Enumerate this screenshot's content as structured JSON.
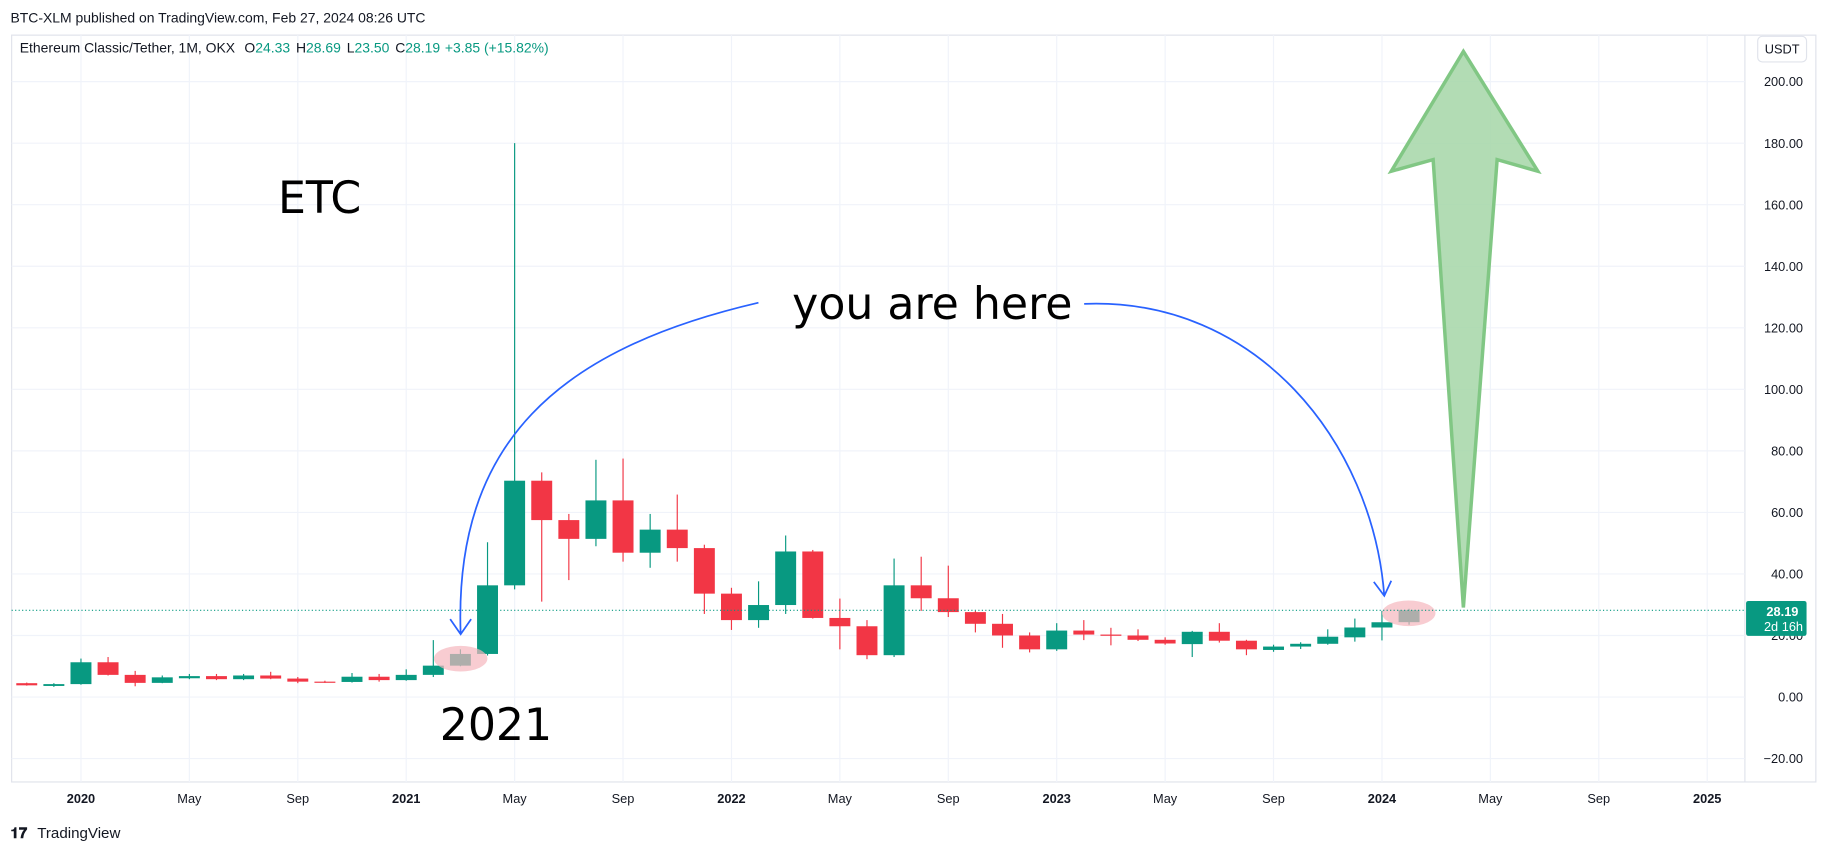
{
  "header": {
    "published": "BTC-XLM published on TradingView.com, Feb 27, 2024 08:26 UTC",
    "currency_button": "USDT",
    "footer_brand": "TradingView"
  },
  "chart_data": {
    "type": "candlestick",
    "symbol": "Ethereum Classic/Tether, 1M, OKX",
    "ohlc_legend": [
      {
        "label": "O",
        "value": "24.33"
      },
      {
        "label": "H",
        "value": "28.69"
      },
      {
        "label": "L",
        "value": "23.50"
      },
      {
        "label": "C",
        "value": "28.19"
      }
    ],
    "change": "+3.85 (+15.82%)",
    "categories": [
      null,
      null,
      "2020",
      null,
      null,
      null,
      "May",
      null,
      null,
      null,
      "Sep",
      null,
      null,
      null,
      "2021",
      null,
      null,
      null,
      "May",
      null,
      null,
      null,
      "Sep",
      null,
      null,
      null,
      "2022",
      null,
      null,
      null,
      "May",
      null,
      null,
      null,
      "Sep",
      null,
      null,
      null,
      "2023",
      null,
      null,
      null,
      "May",
      null,
      null,
      null,
      "Sep",
      null,
      null,
      null,
      "2024",
      null,
      null,
      null,
      "May",
      null,
      null,
      null,
      "Sep",
      null,
      null,
      null,
      "2025"
    ],
    "open": [
      4.5,
      3.6,
      4.2,
      11.3,
      7.2,
      4.6,
      6.1,
      6.8,
      5.8,
      7.0,
      6.0,
      5.0,
      4.9,
      6.6,
      5.5,
      7.2,
      10.2,
      14.0,
      36.3,
      70.3,
      57.5,
      51.4,
      63.9,
      46.9,
      54.4,
      48.4,
      33.6,
      25.0,
      29.9,
      47.3,
      25.7,
      23.0,
      13.6,
      36.3,
      32.1,
      27.6,
      23.8,
      20.0,
      15.5,
      21.6,
      20.3,
      20.0,
      18.6,
      17.2,
      21.2,
      18.3,
      15.3,
      16.4,
      17.3,
      19.4,
      22.6,
      24.33,
      null,
      null,
      null,
      null,
      null,
      null,
      null,
      null,
      null,
      null,
      null
    ],
    "high": [
      4.7,
      4.5,
      12.5,
      13.0,
      8.5,
      7.0,
      7.5,
      7.5,
      7.5,
      8.2,
      6.5,
      5.3,
      7.8,
      7.5,
      9.0,
      18.5,
      15.5,
      50.3,
      180.0,
      73.0,
      59.5,
      77.1,
      77.5,
      59.5,
      65.8,
      49.5,
      35.5,
      37.6,
      52.5,
      47.8,
      32.0,
      25.0,
      45.0,
      45.6,
      42.7,
      28.0,
      27.0,
      21.0,
      24.0,
      25.0,
      22.5,
      22.0,
      19.4,
      21.5,
      24.0,
      18.6,
      17.0,
      17.8,
      22.0,
      25.5,
      28.0,
      28.69,
      null,
      null,
      null,
      null,
      null,
      null,
      null,
      null,
      null,
      null,
      null
    ],
    "low": [
      3.7,
      3.3,
      4.0,
      7.0,
      3.5,
      4.5,
      5.8,
      5.5,
      5.5,
      5.8,
      4.5,
      4.6,
      4.7,
      5.0,
      5.3,
      6.5,
      10.0,
      13.5,
      35.0,
      31.0,
      38.0,
      49.0,
      44.0,
      42.0,
      44.0,
      27.0,
      21.8,
      22.5,
      27.0,
      25.5,
      15.5,
      12.3,
      13.0,
      28.0,
      26.0,
      21.0,
      16.0,
      14.5,
      15.0,
      18.5,
      16.8,
      18.2,
      17.0,
      13.0,
      17.7,
      13.6,
      14.7,
      15.6,
      17.0,
      18.0,
      18.4,
      23.5,
      null,
      null,
      null,
      null,
      null,
      null,
      null,
      null,
      null,
      null,
      null
    ],
    "close": [
      3.8,
      4.2,
      11.3,
      7.2,
      4.6,
      6.4,
      6.8,
      5.8,
      7.0,
      6.0,
      5.0,
      4.9,
      6.6,
      5.5,
      7.2,
      10.2,
      14.0,
      36.3,
      70.3,
      57.5,
      51.4,
      63.9,
      46.9,
      54.4,
      48.4,
      33.6,
      25.0,
      29.9,
      47.3,
      25.7,
      23.0,
      13.6,
      36.3,
      32.1,
      27.6,
      23.8,
      20.0,
      15.5,
      21.6,
      20.3,
      19.9,
      18.6,
      17.4,
      21.2,
      18.3,
      15.5,
      16.4,
      17.3,
      19.6,
      22.6,
      24.3,
      28.19,
      null,
      null,
      null,
      null,
      null,
      null,
      null,
      null,
      null,
      null,
      null
    ],
    "up_color": "#089981",
    "down_color": "#f23645",
    "ylim": [
      -27.6,
      215.1
    ],
    "yticks": [
      {
        "value": -20,
        "label": "−20.00"
      },
      {
        "value": 0,
        "label": "0.00"
      },
      {
        "value": 20,
        "label": "20.00"
      },
      {
        "value": 40,
        "label": "40.00"
      },
      {
        "value": 60,
        "label": "60.00"
      },
      {
        "value": 80,
        "label": "80.00"
      },
      {
        "value": 100,
        "label": "100.00"
      },
      {
        "value": 120,
        "label": "120.00"
      },
      {
        "value": 140,
        "label": "140.00"
      },
      {
        "value": 160,
        "label": "160.00"
      },
      {
        "value": 180,
        "label": "180.00"
      },
      {
        "value": 200,
        "label": "200.00"
      }
    ],
    "grid": true,
    "countdown": "2d 16h",
    "annotations": [
      "ETC",
      "you are here",
      "2021"
    ]
  }
}
